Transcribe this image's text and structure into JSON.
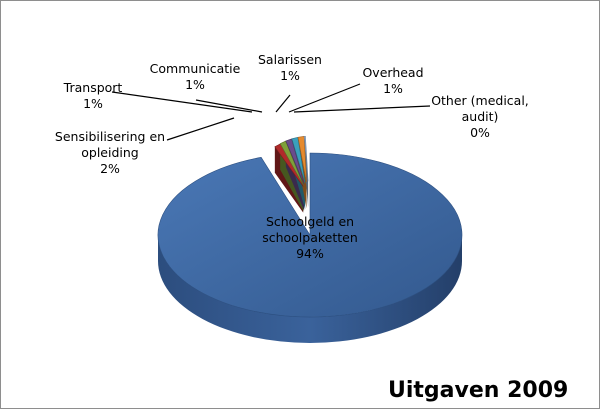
{
  "chart_data": {
    "type": "pie",
    "title": "Uitgaven 2009",
    "slices": [
      {
        "name": "Schoolgeld en schoolpaketten",
        "value": 94,
        "label": "94%",
        "color": "#3f6aa6"
      },
      {
        "name": "Sensibilisering en opleiding",
        "value": 2,
        "label": "2%",
        "color": "#b02a2a"
      },
      {
        "name": "Transport",
        "value": 1,
        "label": "1%",
        "color": "#7fa03a"
      },
      {
        "name": "Communicatie",
        "value": 1,
        "label": "1%",
        "color": "#6a4c8c"
      },
      {
        "name": "Salarissen",
        "value": 1,
        "label": "1%",
        "color": "#3ba0bd"
      },
      {
        "name": "Overhead",
        "value": 1,
        "label": "1%",
        "color": "#e68a2e"
      },
      {
        "name": "Other (medical, audit)",
        "value": 0,
        "label": "0%",
        "color": "#9dbbe0"
      }
    ]
  }
}
